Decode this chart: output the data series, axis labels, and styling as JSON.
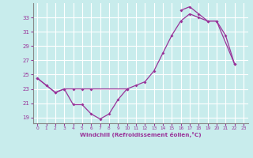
{
  "bg_color": "#c8ecec",
  "line_color": "#993399",
  "grid_color": "#ffffff",
  "xlabel": "Windchill (Refroidissement éolien,°C)",
  "xlim": [
    -0.5,
    23.5
  ],
  "ylim": [
    18.2,
    35.0
  ],
  "yticks": [
    19,
    21,
    23,
    25,
    27,
    29,
    31,
    33
  ],
  "xticks": [
    0,
    1,
    2,
    3,
    4,
    5,
    6,
    7,
    8,
    9,
    10,
    11,
    12,
    13,
    14,
    15,
    16,
    17,
    18,
    19,
    20,
    21,
    22,
    23
  ],
  "curve1": [
    [
      0,
      24.5
    ],
    [
      1,
      23.5
    ],
    [
      2,
      22.5
    ],
    [
      3,
      23.0
    ],
    [
      4,
      20.8
    ],
    [
      5,
      20.8
    ],
    [
      6,
      19.5
    ],
    [
      7,
      18.8
    ],
    [
      8,
      19.5
    ],
    [
      9,
      21.5
    ],
    [
      10,
      23.0
    ]
  ],
  "curve2": [
    [
      0,
      24.5
    ],
    [
      1,
      23.5
    ],
    [
      2,
      22.5
    ],
    [
      3,
      23.0
    ],
    [
      4,
      23.0
    ],
    [
      5,
      23.0
    ],
    [
      6,
      23.0
    ],
    [
      10,
      23.0
    ],
    [
      11,
      23.5
    ],
    [
      12,
      24.0
    ],
    [
      13,
      25.5
    ],
    [
      14,
      28.0
    ],
    [
      15,
      30.5
    ],
    [
      16,
      32.5
    ],
    [
      17,
      33.5
    ],
    [
      18,
      33.0
    ],
    [
      19,
      32.5
    ],
    [
      20,
      32.5
    ],
    [
      22,
      26.5
    ]
  ],
  "curve3": [
    [
      16,
      34.0
    ],
    [
      17,
      34.5
    ],
    [
      18,
      33.5
    ],
    [
      19,
      32.5
    ],
    [
      20,
      32.5
    ],
    [
      21,
      30.5
    ],
    [
      22,
      26.5
    ]
  ]
}
